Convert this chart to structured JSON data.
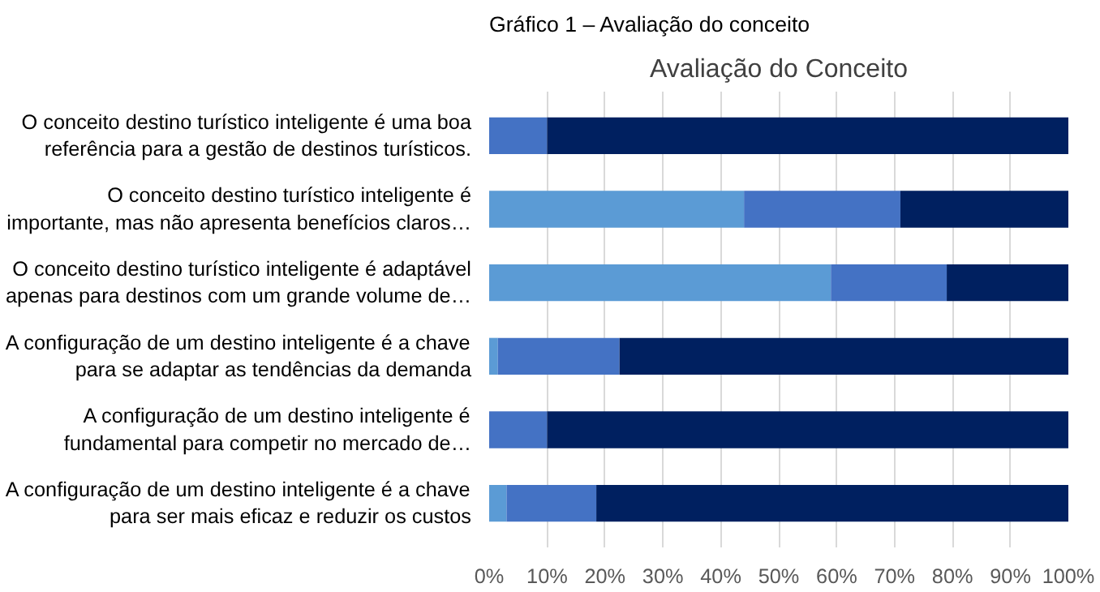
{
  "chart_data": {
    "type": "bar",
    "orientation": "horizontal",
    "stacked": true,
    "annotations": [
      "Gráfico 1 – Avaliação do conceito"
    ],
    "title": "Avaliação do Conceito",
    "categories": [
      "O conceito destino turístico inteligente é uma boa\nreferência para a gestão de destinos turísticos.",
      "O conceito destino turístico inteligente é\nimportante, mas não apresenta benefícios claros…",
      "O conceito destino turístico inteligente é adaptável\napenas para destinos com um grande volume de…",
      "A configuração de um destino inteligente é a chave\npara se adaptar as tendências da demanda",
      "A configuração de um destino inteligente é\nfundamental para competir no mercado de…",
      "A configuração de um destino inteligente é a chave\npara ser mais eficaz e reduzir os custos"
    ],
    "series": [
      {
        "color": "#5b9bd5",
        "values": [
          0,
          44,
          59,
          1.5,
          0,
          3
        ]
      },
      {
        "color": "#4472c4",
        "values": [
          10,
          27,
          20,
          21,
          10,
          15.5
        ]
      },
      {
        "color": "#002060",
        "values": [
          90,
          29,
          21,
          77.5,
          90,
          81.5
        ]
      }
    ],
    "xlim": [
      0,
      100
    ],
    "xticks": [
      {
        "value": 0,
        "label": "0%"
      },
      {
        "value": 10,
        "label": "10%"
      },
      {
        "value": 20,
        "label": "20%"
      },
      {
        "value": 30,
        "label": "30%"
      },
      {
        "value": 40,
        "label": "40%"
      },
      {
        "value": 50,
        "label": "50%"
      },
      {
        "value": 60,
        "label": "60%"
      },
      {
        "value": 70,
        "label": "70%"
      },
      {
        "value": 80,
        "label": "80%"
      },
      {
        "value": 90,
        "label": "90%"
      },
      {
        "value": 100,
        "label": "100%"
      }
    ],
    "grid": "x"
  }
}
